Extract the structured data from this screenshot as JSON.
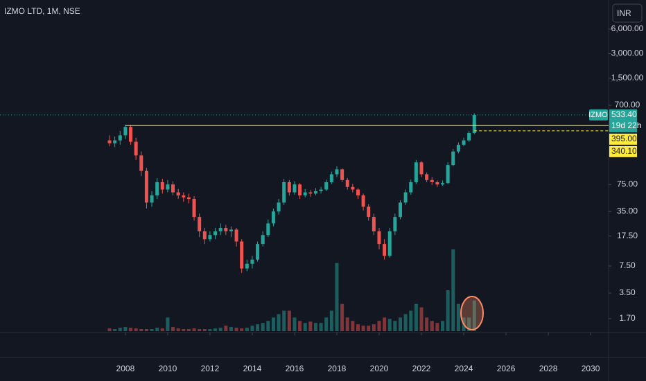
{
  "chart_data": {
    "type": "candlestick",
    "title": "IZMO LTD, 1M, NSE",
    "currency": "INR",
    "log_scale": true,
    "grid": false,
    "up_color": "#26a69a",
    "down_color": "#ef5350",
    "x": [
      2007.25,
      2007.5,
      2007.75,
      2008,
      2008.25,
      2008.5,
      2008.75,
      2009,
      2009.25,
      2009.5,
      2009.75,
      2010,
      2010.25,
      2010.5,
      2010.75,
      2011,
      2011.25,
      2011.5,
      2011.75,
      2012,
      2012.25,
      2012.5,
      2012.75,
      2013,
      2013.25,
      2013.5,
      2013.75,
      2014,
      2014.25,
      2014.5,
      2014.75,
      2015,
      2015.25,
      2015.5,
      2015.75,
      2016,
      2016.25,
      2016.5,
      2016.75,
      2017,
      2017.25,
      2017.5,
      2017.75,
      2018,
      2018.25,
      2018.5,
      2018.75,
      2019,
      2019.25,
      2019.5,
      2019.75,
      2020,
      2020.25,
      2020.5,
      2020.75,
      2021,
      2021.25,
      2021.5,
      2021.75,
      2022,
      2022.25,
      2022.5,
      2022.75,
      2023,
      2023.25,
      2023.5,
      2023.75,
      2024,
      2024.25,
      2024.5
    ],
    "open": [
      260,
      240,
      260,
      300,
      380,
      250,
      170,
      110,
      45,
      55,
      80,
      65,
      75,
      60,
      55,
      52,
      50,
      30,
      20,
      16,
      18,
      20,
      22,
      20,
      21,
      15,
      7,
      8,
      9,
      14,
      18,
      25,
      35,
      45,
      80,
      60,
      75,
      55,
      60,
      58,
      62,
      65,
      80,
      100,
      115,
      85,
      70,
      65,
      55,
      40,
      30,
      20,
      14,
      10,
      20,
      30,
      45,
      60,
      80,
      140,
      100,
      85,
      80,
      75,
      78,
      130,
      190,
      230,
      260,
      320
    ],
    "high": [
      300,
      290,
      340,
      404,
      400,
      280,
      190,
      120,
      62,
      90,
      88,
      85,
      82,
      66,
      60,
      58,
      54,
      33,
      22,
      20,
      22,
      25,
      24,
      23,
      22,
      16,
      9,
      10,
      15,
      20,
      28,
      38,
      50,
      88,
      85,
      82,
      78,
      66,
      64,
      68,
      70,
      86,
      108,
      125,
      118,
      90,
      76,
      68,
      58,
      43,
      33,
      22,
      16,
      22,
      33,
      48,
      65,
      86,
      150,
      145,
      105,
      92,
      84,
      84,
      140,
      205,
      245,
      280,
      340,
      560
    ],
    "low": [
      220,
      215,
      230,
      270,
      230,
      150,
      95,
      38,
      40,
      50,
      58,
      60,
      55,
      50,
      46,
      44,
      27,
      17,
      14,
      15,
      16,
      18,
      18,
      17,
      13,
      6.2,
      6.5,
      7,
      8.5,
      13,
      17,
      23,
      32,
      42,
      55,
      56,
      50,
      52,
      53,
      55,
      58,
      62,
      76,
      92,
      80,
      65,
      60,
      50,
      36,
      27,
      18,
      12,
      9,
      9.5,
      18,
      28,
      42,
      56,
      76,
      92,
      80,
      74,
      70,
      72,
      76,
      125,
      180,
      220,
      250,
      310
    ],
    "close": [
      240,
      260,
      300,
      380,
      250,
      170,
      110,
      45,
      55,
      80,
      65,
      75,
      60,
      55,
      52,
      50,
      30,
      20,
      16,
      18,
      20,
      22,
      20,
      21,
      15,
      7,
      8,
      9,
      14,
      18,
      25,
      35,
      45,
      80,
      60,
      75,
      55,
      60,
      58,
      62,
      65,
      80,
      100,
      115,
      85,
      70,
      65,
      55,
      40,
      30,
      20,
      14,
      10,
      20,
      30,
      45,
      60,
      80,
      140,
      100,
      85,
      80,
      75,
      78,
      130,
      190,
      230,
      260,
      320,
      533.4
    ],
    "volume": [
      4,
      3,
      5,
      6,
      5,
      4,
      3,
      3,
      3,
      5,
      4,
      20,
      6,
      4,
      3,
      3,
      4,
      3,
      3,
      3,
      4,
      5,
      8,
      6,
      5,
      4,
      5,
      8,
      10,
      12,
      15,
      20,
      25,
      30,
      30,
      20,
      15,
      12,
      14,
      12,
      12,
      20,
      30,
      100,
      40,
      20,
      15,
      10,
      8,
      8,
      10,
      15,
      20,
      18,
      15,
      20,
      25,
      30,
      40,
      35,
      20,
      15,
      12,
      15,
      60,
      120,
      40,
      20,
      20,
      45
    ],
    "xlim": [
      2002.07,
      2030.85
    ],
    "xticks": [
      2008,
      2010,
      2012,
      2014,
      2016,
      2018,
      2020,
      2022,
      2024,
      2026,
      2028,
      2030
    ],
    "ylim": [
      1.15,
      13650
    ],
    "yticks": [
      {
        "value": 6000,
        "label": "6,000.00"
      },
      {
        "value": 3000,
        "label": "3,000.00"
      },
      {
        "value": 1500,
        "label": "1,500.00"
      },
      {
        "value": 700,
        "label": "700.00"
      },
      {
        "value": 75,
        "label": "75.00"
      },
      {
        "value": 35,
        "label": "35.00"
      },
      {
        "value": 17.5,
        "label": "17.50"
      },
      {
        "value": 7.5,
        "label": "7.50"
      },
      {
        "value": 3.5,
        "label": "3.50"
      },
      {
        "value": 1.7,
        "label": "1.70"
      }
    ],
    "last_price": {
      "symbol": "IZMO",
      "value": 533.4,
      "label": "533.40",
      "countdown": "19d 22h",
      "color": "#26a69a"
    },
    "price_lines": [
      {
        "value": 395,
        "label": "395.00",
        "color": "#ffeb3b"
      },
      {
        "value": 340.1,
        "label": "340.10",
        "color": "#ffeb3b"
      }
    ]
  }
}
